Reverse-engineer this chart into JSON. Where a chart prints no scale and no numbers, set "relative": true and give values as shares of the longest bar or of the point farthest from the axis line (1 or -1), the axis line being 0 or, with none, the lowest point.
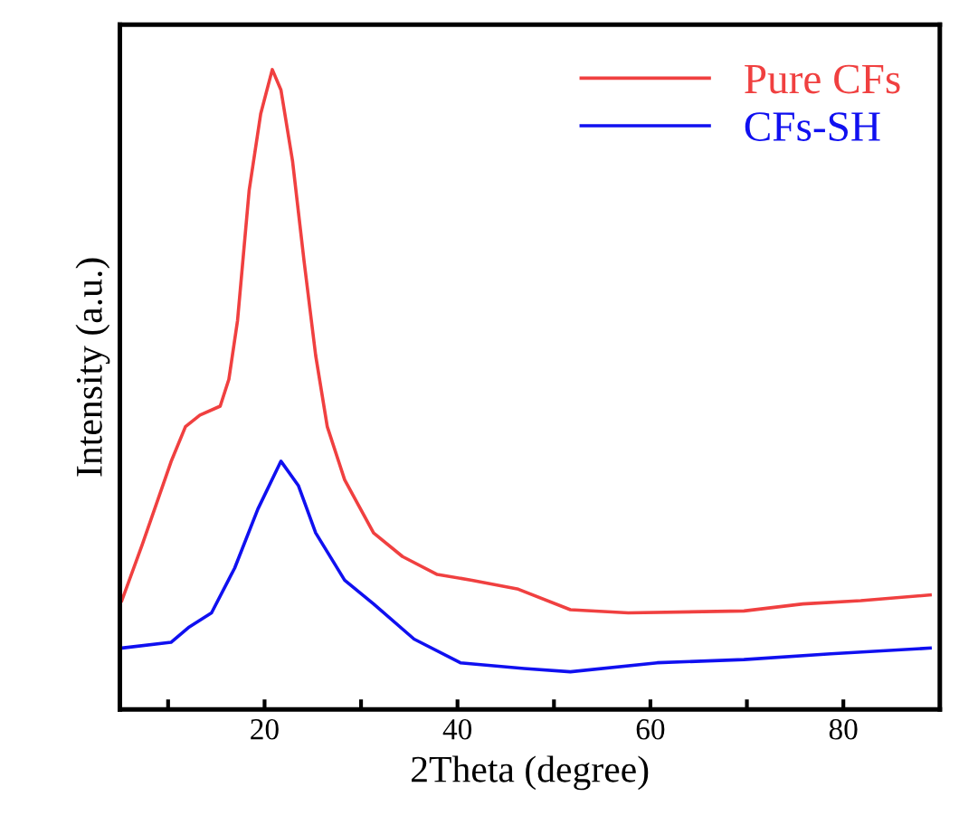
{
  "chart_data": {
    "type": "line",
    "xlabel": "2Theta (degree)",
    "ylabel": "Intensity (a.u.)",
    "relative": true,
    "xlim": [
      5,
      90
    ],
    "xticks": [
      {
        "value": 10,
        "label": null
      },
      20,
      {
        "value": 30,
        "label": null
      },
      40,
      {
        "value": 50,
        "label": null
      },
      60,
      {
        "value": 70,
        "label": null
      },
      80
    ],
    "legend": "top right",
    "grid": false,
    "series": [
      {
        "name": "Pure CFs",
        "color": "#f04040",
        "x": [
          5.2,
          7.3,
          10.3,
          11.8,
          13.3,
          15.4,
          16.3,
          17.2,
          18.4,
          19.6,
          20.8,
          21.7,
          22.9,
          24.1,
          25.3,
          26.5,
          28.3,
          31.3,
          34.3,
          37.9,
          41.5,
          46.3,
          51.7,
          57.7,
          69.7,
          75.8,
          81.8,
          89
        ],
        "values": [
          0.17,
          0.257,
          0.387,
          0.442,
          0.46,
          0.474,
          0.516,
          0.608,
          0.811,
          0.931,
          1.0,
          0.968,
          0.857,
          0.7,
          0.553,
          0.442,
          0.359,
          0.276,
          0.239,
          0.211,
          0.202,
          0.188,
          0.156,
          0.151,
          0.154,
          0.165,
          0.17,
          0.179
        ]
      },
      {
        "name": "CFs-SH",
        "color": "#1010f0",
        "x": [
          5.2,
          10.3,
          12.1,
          14.5,
          16.9,
          19.3,
          21.7,
          23.5,
          25.3,
          28.3,
          31.3,
          35.5,
          40.3,
          46.9,
          51.7,
          60.7,
          69.7,
          78.7,
          89
        ],
        "values": [
          0.096,
          0.105,
          0.128,
          0.151,
          0.221,
          0.313,
          0.388,
          0.35,
          0.276,
          0.202,
          0.165,
          0.11,
          0.073,
          0.064,
          0.059,
          0.073,
          0.078,
          0.087,
          0.096
        ]
      }
    ]
  }
}
